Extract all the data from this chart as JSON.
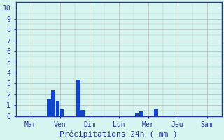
{
  "title": "",
  "xlabel": "Précipitations 24h ( mm )",
  "background_color": "#d6f5f0",
  "bar_color": "#1144cc",
  "grid_color": "#b0b8b0",
  "axis_color": "#2233aa",
  "tick_label_color": "#2233aa",
  "xlabel_color": "#2233aa",
  "ylim": [
    0,
    10
  ],
  "yticks": [
    0,
    1,
    2,
    3,
    4,
    5,
    6,
    7,
    8,
    9,
    10
  ],
  "day_labels": [
    "Mar",
    "Ven",
    "Dim",
    "Lun",
    "Mer",
    "Jeu",
    "Sam"
  ],
  "day_positions": [
    0,
    1,
    2,
    3,
    4,
    5,
    6
  ],
  "xlim": [
    -0.5,
    6.5
  ],
  "bar_data": [
    [
      0.62,
      1.5
    ],
    [
      0.77,
      2.4
    ],
    [
      0.92,
      1.4
    ],
    [
      1.07,
      0.65
    ],
    [
      1.62,
      3.35
    ],
    [
      1.77,
      0.55
    ],
    [
      3.62,
      0.3
    ],
    [
      3.77,
      0.45
    ],
    [
      4.27,
      0.6
    ]
  ],
  "bar_width": 0.13,
  "tick_fontsize": 7,
  "xlabel_fontsize": 8
}
